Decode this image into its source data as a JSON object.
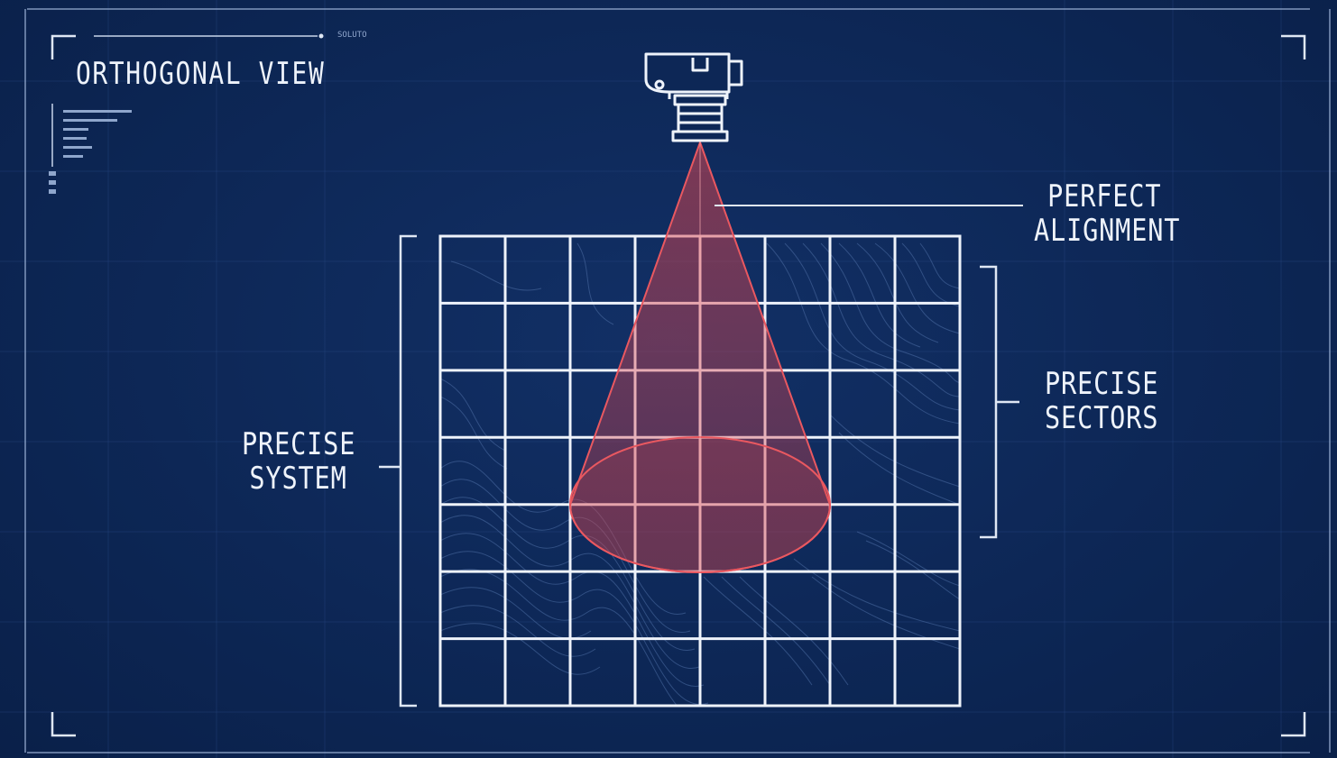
{
  "title": "ORTHOGONAL VIEW",
  "code_tag": "SOLUTO",
  "labels": {
    "alignment": [
      "PERFECT",
      "ALIGNMENT"
    ],
    "sectors": [
      "PRECISE",
      "SECTORS"
    ],
    "system": [
      "PRECISE",
      "SYSTEM"
    ]
  },
  "grid": {
    "columns": 8,
    "rows": 7
  },
  "colors": {
    "background": "#0c2552",
    "lines": "#eef3fb",
    "cone": "#e0464e",
    "topo": "#4f6fa6"
  },
  "icons": [
    "camera-icon"
  ]
}
